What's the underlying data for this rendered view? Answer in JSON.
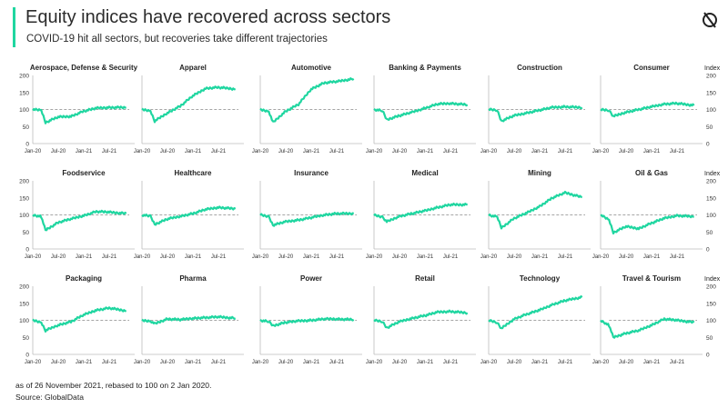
{
  "header": {
    "title": "Equity indices have recovered across sectors",
    "subtitle": "COVID-19 hit all sectors, but recoveries take different trajectories",
    "logo_icon": "globaldata-logo-icon"
  },
  "footer": {
    "note": "as of 26 November 2021, rebased to 100 on 2 Jan 2020.",
    "source": "Source: GlobalData"
  },
  "colors": {
    "line": "#1fd6a0",
    "accent": "#1fd6a0",
    "baseline": "#888888",
    "axis": "#bbbbbb",
    "text": "#222222"
  },
  "chart_data": {
    "type": "line",
    "ylim": [
      0,
      200
    ],
    "yticks": [
      "0",
      "50",
      "100",
      "150",
      "200"
    ],
    "xticks": [
      "Jan-20",
      "Jul-20",
      "Jan-21",
      "Jul-21"
    ],
    "reference_line": 100,
    "right_axis_label": "Index",
    "panels": [
      {
        "title": "Aerospace, Defense & Security",
        "x": [
          "Jan-20",
          "Mar-20",
          "Apr-20",
          "Jul-20",
          "Oct-20",
          "Jan-21",
          "Apr-21",
          "Jul-21",
          "Nov-21"
        ],
        "values": [
          100,
          98,
          62,
          78,
          80,
          95,
          104,
          106,
          106
        ]
      },
      {
        "title": "Apparel",
        "x": [
          "Jan-20",
          "Mar-20",
          "Apr-20",
          "Jul-20",
          "Oct-20",
          "Jan-21",
          "Apr-21",
          "Jul-21",
          "Nov-21"
        ],
        "values": [
          100,
          96,
          66,
          90,
          110,
          140,
          162,
          165,
          160
        ]
      },
      {
        "title": "Automotive",
        "x": [
          "Jan-20",
          "Mar-20",
          "Apr-20",
          "Jul-20",
          "Oct-20",
          "Jan-21",
          "Apr-21",
          "Jul-21",
          "Nov-21"
        ],
        "values": [
          100,
          95,
          62,
          95,
          115,
          160,
          178,
          182,
          190
        ]
      },
      {
        "title": "Banking & Payments",
        "x": [
          "Jan-20",
          "Mar-20",
          "Apr-20",
          "Jul-20",
          "Oct-20",
          "Jan-21",
          "Apr-21",
          "Jul-21",
          "Nov-21"
        ],
        "values": [
          100,
          96,
          70,
          82,
          92,
          104,
          116,
          118,
          114
        ]
      },
      {
        "title": "Construction",
        "x": [
          "Jan-20",
          "Mar-20",
          "Apr-20",
          "Jul-20",
          "Oct-20",
          "Jan-21",
          "Apr-21",
          "Jul-21",
          "Nov-21"
        ],
        "values": [
          100,
          98,
          66,
          82,
          90,
          98,
          106,
          108,
          106
        ]
      },
      {
        "title": "Consumer",
        "x": [
          "Jan-20",
          "Mar-20",
          "Apr-20",
          "Jul-20",
          "Oct-20",
          "Jan-21",
          "Apr-21",
          "Jul-21",
          "Nov-21"
        ],
        "values": [
          100,
          98,
          80,
          92,
          100,
          108,
          116,
          118,
          112
        ]
      },
      {
        "title": "Foodservice",
        "x": [
          "Jan-20",
          "Mar-20",
          "Apr-20",
          "Jul-20",
          "Oct-20",
          "Jan-21",
          "Apr-21",
          "Jul-21",
          "Nov-21"
        ],
        "values": [
          100,
          95,
          55,
          78,
          88,
          98,
          110,
          108,
          104
        ]
      },
      {
        "title": "Healthcare",
        "x": [
          "Jan-20",
          "Mar-20",
          "Apr-20",
          "Jul-20",
          "Oct-20",
          "Jan-21",
          "Apr-21",
          "Jul-21",
          "Nov-21"
        ],
        "values": [
          100,
          96,
          72,
          88,
          96,
          104,
          116,
          122,
          118
        ]
      },
      {
        "title": "Insurance",
        "x": [
          "Jan-20",
          "Mar-20",
          "Apr-20",
          "Jul-20",
          "Oct-20",
          "Jan-21",
          "Apr-21",
          "Jul-21",
          "Nov-21"
        ],
        "values": [
          100,
          95,
          70,
          80,
          85,
          92,
          100,
          104,
          104
        ]
      },
      {
        "title": "Medical",
        "x": [
          "Jan-20",
          "Mar-20",
          "Apr-20",
          "Jul-20",
          "Oct-20",
          "Jan-21",
          "Apr-21",
          "Jul-21",
          "Nov-21"
        ],
        "values": [
          100,
          94,
          80,
          96,
          104,
          112,
          122,
          130,
          130
        ]
      },
      {
        "title": "Mining",
        "x": [
          "Jan-20",
          "Mar-20",
          "Apr-20",
          "Jul-20",
          "Oct-20",
          "Jan-21",
          "Apr-21",
          "Jul-21",
          "Nov-21"
        ],
        "values": [
          100,
          94,
          62,
          90,
          106,
          125,
          150,
          165,
          152
        ]
      },
      {
        "title": "Oil & Gas",
        "x": [
          "Jan-20",
          "Mar-20",
          "Apr-20",
          "Jul-20",
          "Oct-20",
          "Jan-21",
          "Apr-21",
          "Jul-21",
          "Nov-21"
        ],
        "values": [
          100,
          85,
          48,
          66,
          60,
          76,
          90,
          98,
          95
        ]
      },
      {
        "title": "Packaging",
        "x": [
          "Jan-20",
          "Mar-20",
          "Apr-20",
          "Jul-20",
          "Oct-20",
          "Jan-21",
          "Apr-21",
          "Jul-21",
          "Nov-21"
        ],
        "values": [
          100,
          94,
          70,
          86,
          96,
          116,
          130,
          136,
          128
        ]
      },
      {
        "title": "Pharma",
        "x": [
          "Jan-20",
          "Mar-20",
          "Apr-20",
          "Jul-20",
          "Oct-20",
          "Jan-21",
          "Apr-21",
          "Jul-21",
          "Nov-21"
        ],
        "values": [
          100,
          98,
          90,
          104,
          102,
          106,
          108,
          110,
          106
        ]
      },
      {
        "title": "Power",
        "x": [
          "Jan-20",
          "Mar-20",
          "Apr-20",
          "Jul-20",
          "Oct-20",
          "Jan-21",
          "Apr-21",
          "Jul-21",
          "Nov-21"
        ],
        "values": [
          100,
          96,
          84,
          94,
          98,
          100,
          104,
          104,
          102
        ]
      },
      {
        "title": "Retail",
        "x": [
          "Jan-20",
          "Mar-20",
          "Apr-20",
          "Jul-20",
          "Oct-20",
          "Jan-21",
          "Apr-21",
          "Jul-21",
          "Nov-21"
        ],
        "values": [
          100,
          96,
          78,
          96,
          106,
          114,
          124,
          126,
          122
        ]
      },
      {
        "title": "Technology",
        "x": [
          "Jan-20",
          "Mar-20",
          "Apr-20",
          "Jul-20",
          "Oct-20",
          "Jan-21",
          "Apr-21",
          "Jul-21",
          "Nov-21"
        ],
        "values": [
          100,
          94,
          76,
          104,
          118,
          130,
          146,
          158,
          168
        ]
      },
      {
        "title": "Travel & Tourism",
        "x": [
          "Jan-20",
          "Mar-20",
          "Apr-20",
          "Jul-20",
          "Oct-20",
          "Jan-21",
          "Apr-21",
          "Jul-21",
          "Nov-21"
        ],
        "values": [
          100,
          85,
          50,
          62,
          70,
          86,
          104,
          100,
          94
        ]
      }
    ]
  }
}
